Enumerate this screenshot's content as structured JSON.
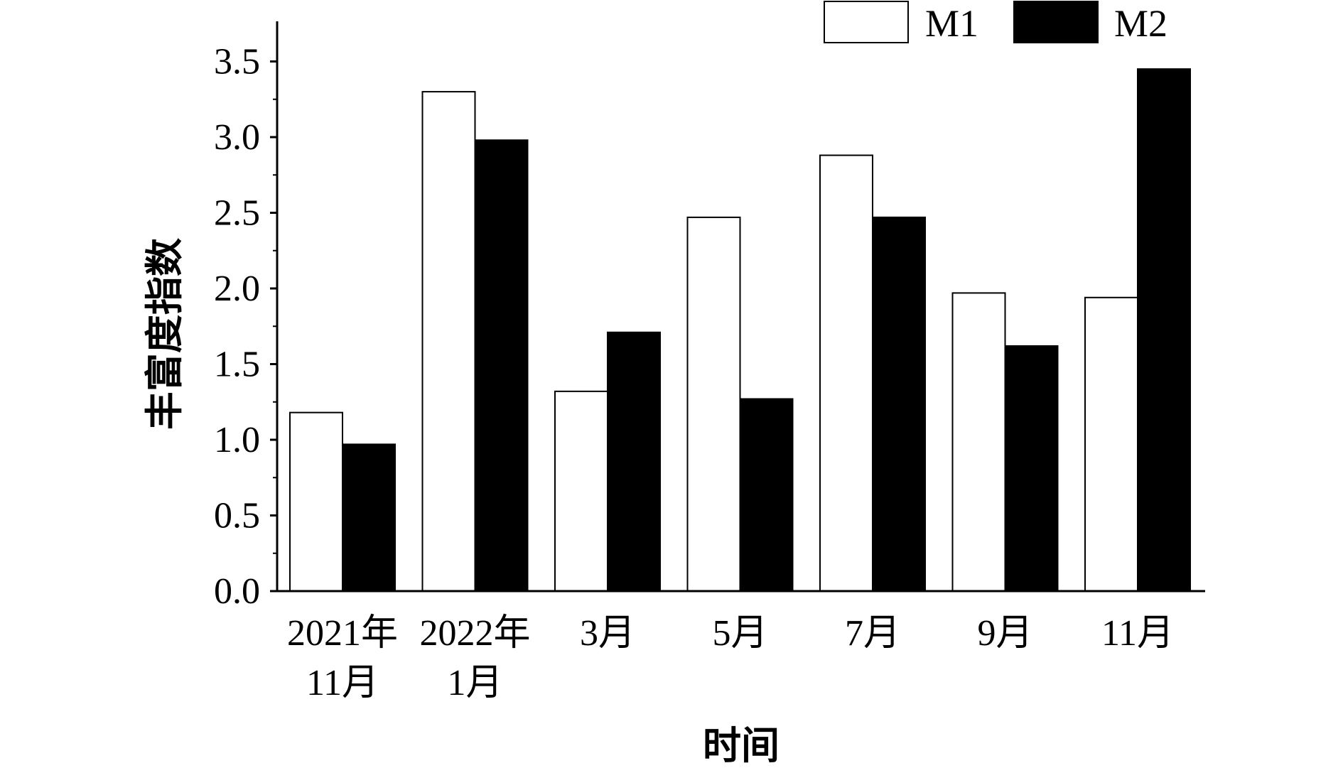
{
  "chart_data": {
    "type": "bar",
    "title": "",
    "xlabel": "时间",
    "ylabel": "丰富度指数",
    "ylim": [
      0,
      3.75
    ],
    "yticks": [
      {
        "value": 0.0,
        "label": "0.0"
      },
      {
        "value": 0.5,
        "label": "0.5"
      },
      {
        "value": 1.0,
        "label": "1.0"
      },
      {
        "value": 1.5,
        "label": "1.5"
      },
      {
        "value": 2.0,
        "label": "2.0"
      },
      {
        "value": 2.5,
        "label": "2.5"
      },
      {
        "value": 3.0,
        "label": "3.0"
      },
      {
        "value": 3.5,
        "label": "3.5"
      }
    ],
    "categories": [
      [
        "2021年",
        "11月"
      ],
      [
        "2022年",
        "1月"
      ],
      [
        "3月"
      ],
      [
        "5月"
      ],
      [
        "7月"
      ],
      [
        "9月"
      ],
      [
        "11月"
      ]
    ],
    "series": [
      {
        "name": "M1",
        "fill": "#ffffff",
        "values": [
          1.18,
          3.3,
          1.32,
          2.47,
          2.88,
          1.97,
          1.94
        ]
      },
      {
        "name": "M2",
        "fill": "#000000",
        "values": [
          0.97,
          2.98,
          1.71,
          1.27,
          2.47,
          1.62,
          3.45
        ]
      }
    ],
    "legend": "top-right",
    "grid": false
  }
}
